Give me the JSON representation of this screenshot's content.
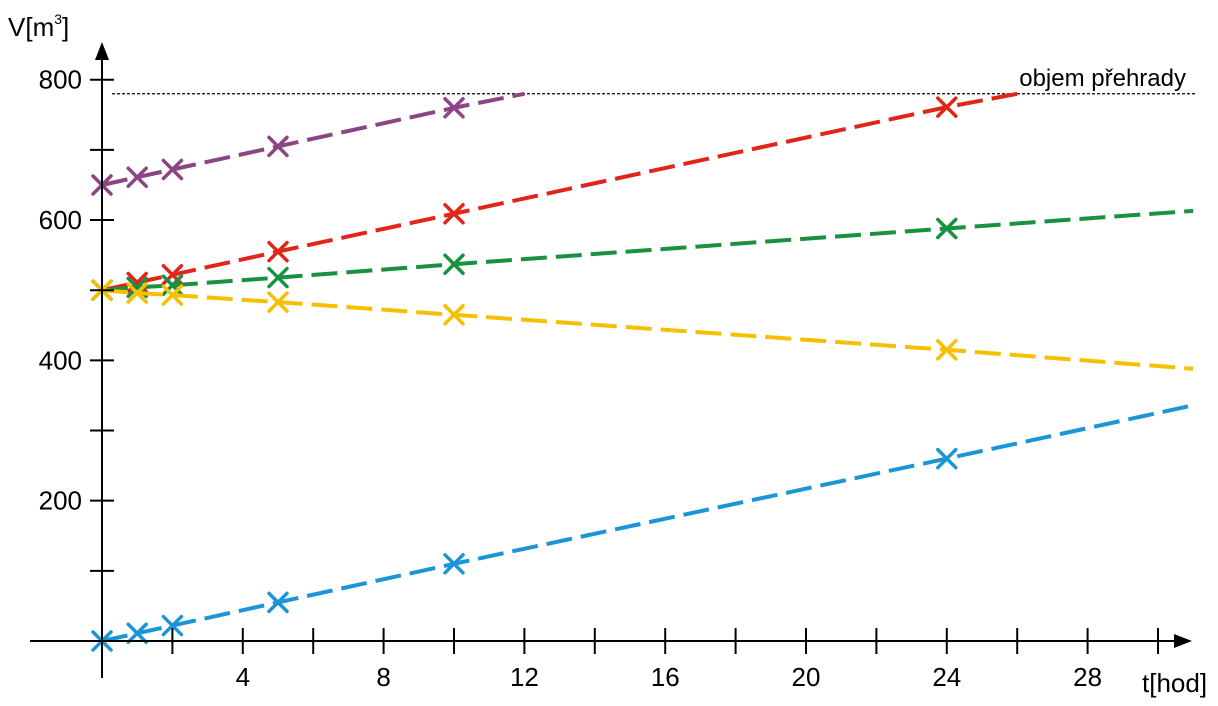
{
  "chart_data": {
    "type": "line",
    "ylabel": "V[m",
    "ylabel_sup": "3",
    "ylabel_end": "]",
    "xlabel": "t[hod]",
    "xlim": [
      0,
      31
    ],
    "ylim": [
      0,
      850
    ],
    "x_ticks": [
      4,
      8,
      12,
      16,
      20,
      24,
      28
    ],
    "y_ticks": [
      200,
      400,
      600,
      800
    ],
    "grid": false,
    "reference_line": {
      "label": "objem přehrady",
      "value": 780
    },
    "series": [
      {
        "color": "#8b4585",
        "marker_x": [
          0,
          1,
          2,
          5,
          10
        ],
        "marker_y": [
          650,
          661,
          672,
          705,
          760
        ],
        "line_end": [
          12,
          780
        ]
      },
      {
        "color": "#e1251b",
        "marker_x": [
          0,
          1,
          2,
          5,
          10,
          24
        ],
        "marker_y": [
          500,
          511,
          522,
          555,
          609,
          761
        ],
        "line_end": [
          26,
          780
        ]
      },
      {
        "color": "#1a9140",
        "marker_x": [
          0,
          1,
          2,
          5,
          10,
          24
        ],
        "marker_y": [
          500,
          504,
          507,
          518,
          537,
          588
        ],
        "line_end": [
          31,
          613
        ]
      },
      {
        "color": "#f5c000",
        "marker_x": [
          0,
          1,
          2,
          5,
          10,
          24
        ],
        "marker_y": [
          500,
          496,
          493,
          483,
          465,
          415
        ],
        "line_end": [
          31,
          388
        ]
      },
      {
        "color": "#1b95d8",
        "marker_x": [
          0,
          1,
          2,
          5,
          10,
          24
        ],
        "marker_y": [
          0,
          11,
          22,
          55,
          110,
          260
        ],
        "line_end": [
          31,
          336
        ]
      }
    ]
  }
}
